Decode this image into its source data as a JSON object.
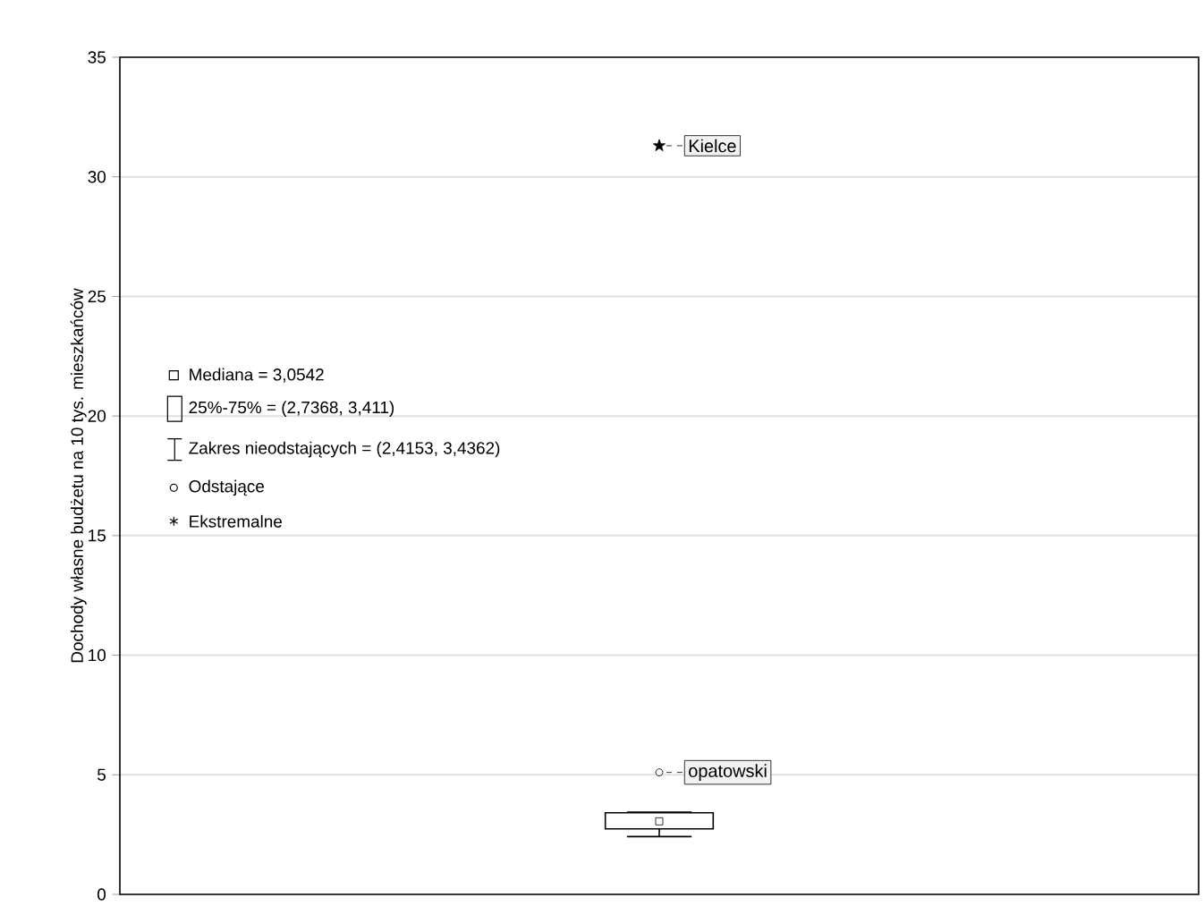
{
  "chart_data": {
    "type": "box",
    "ylabel": "Dochody własne budżetu na 10 tys. mieszkańców",
    "categories": [
      null
    ],
    "series": [
      {
        "color": "#000000",
        "boxes": [
          {
            "low": 2.4153,
            "q1": 2.7368,
            "median": 3.0542,
            "q3": 3.411,
            "high": 3.4362,
            "outliers": [
              5.1
            ]
          }
        ]
      },
      {
        "type": "scatter",
        "color": "#000000",
        "marker": "star",
        "values": [
          31.3
        ]
      }
    ],
    "ylim": [
      0,
      35
    ],
    "yticks": [
      0,
      5,
      10,
      15,
      20,
      25,
      30,
      35
    ],
    "grid": "y",
    "tick_labels": "y",
    "annotations": [
      "Mediana = 3,0542",
      "25%-75%     = (2,7368, 3,411)",
      "Zakres nieodstających     = (2,4153, 3,4362)",
      "Odstające",
      "Ekstremalne",
      "opatowski",
      "Kielce"
    ]
  }
}
